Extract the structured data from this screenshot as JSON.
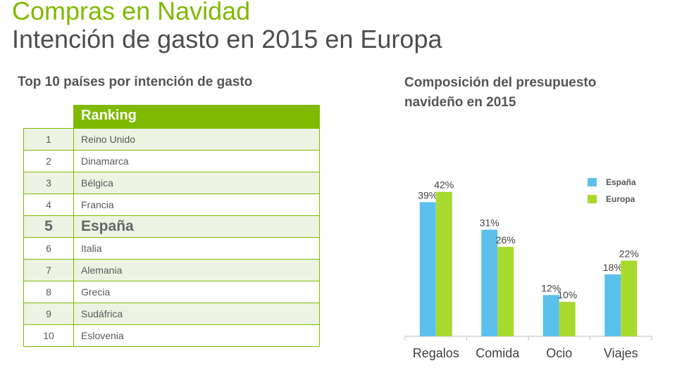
{
  "header": {
    "title": "Compras en Navidad",
    "subtitle": "Intención de gasto en 2015 en Europa"
  },
  "ranking": {
    "heading": "Top 10 países por intención de gasto",
    "column_label": "Ranking",
    "rows": [
      {
        "pos": "1",
        "country": "Reino Unido"
      },
      {
        "pos": "2",
        "country": "Dinamarca"
      },
      {
        "pos": "3",
        "country": "Bélgica"
      },
      {
        "pos": "4",
        "country": "Francia"
      },
      {
        "pos": "5",
        "country": "España",
        "highlight": true
      },
      {
        "pos": "6",
        "country": "Italia"
      },
      {
        "pos": "7",
        "country": "Alemania"
      },
      {
        "pos": "8",
        "country": "Grecia"
      },
      {
        "pos": "9",
        "country": "Sudáfrica"
      },
      {
        "pos": "10",
        "country": "Eslovenia"
      }
    ]
  },
  "colors": {
    "accent": "#7fba00",
    "espana": "#5bc0eb",
    "europa": "#a8d92f",
    "text": "#4d4d4d"
  },
  "chart_data": {
    "type": "bar",
    "title": "Composición del presupuesto navideño en 2015",
    "categories": [
      "Regalos",
      "Comida",
      "Ocio",
      "Viajes"
    ],
    "series": [
      {
        "name": "España",
        "values": [
          39,
          31,
          12,
          18
        ],
        "labels": [
          "39%",
          "31%",
          "12%",
          "18%"
        ],
        "color": "#5bc0eb"
      },
      {
        "name": "Europa",
        "values": [
          42,
          26,
          10,
          22
        ],
        "labels": [
          "42%",
          "26%",
          "10%",
          "22%"
        ],
        "color": "#a8d92f"
      }
    ],
    "ylim": [
      0,
      45
    ],
    "grid": false,
    "legend": "top-right"
  }
}
